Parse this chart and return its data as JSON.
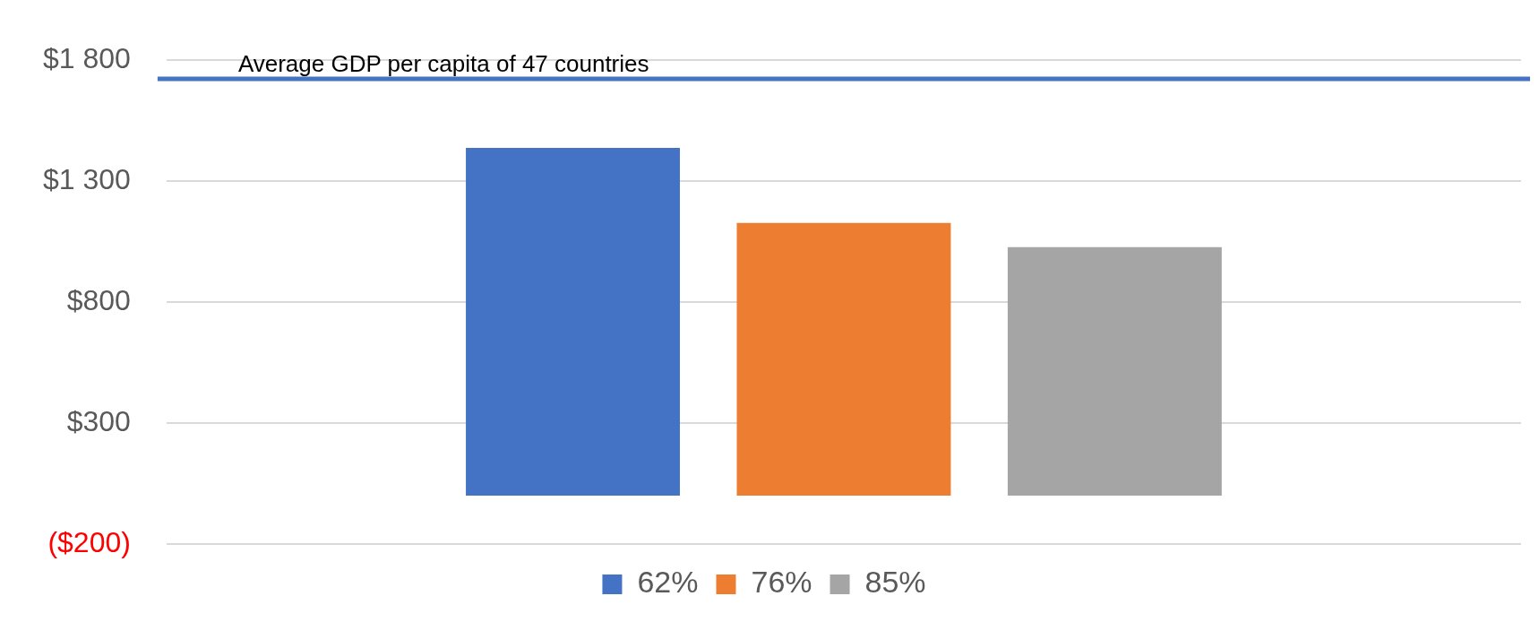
{
  "chart_data": {
    "type": "bar",
    "categories": [
      null
    ],
    "series": [
      {
        "name": "62%",
        "color": "#4472c4",
        "values": [
          1438
        ]
      },
      {
        "name": "76%",
        "color": "#ed7d31",
        "values": [
          1127
        ]
      },
      {
        "name": "85%",
        "color": "#a5a5a5",
        "values": [
          1027
        ]
      }
    ],
    "ylim": [
      -200,
      1800
    ],
    "yticks": [
      {
        "value": -200,
        "label": "($200)"
      },
      {
        "value": 300,
        "label": "$300"
      },
      {
        "value": 800,
        "label": "$800"
      },
      {
        "value": 1300,
        "label": "$1 300"
      },
      {
        "value": 1800,
        "label": "$1 800"
      }
    ],
    "ref_lines": [
      {
        "axis": "y",
        "value": 1723,
        "label": "Average GDP per capita of 47 countries",
        "color": "#4472c4"
      }
    ],
    "grid": "y",
    "legend": "bottom"
  }
}
